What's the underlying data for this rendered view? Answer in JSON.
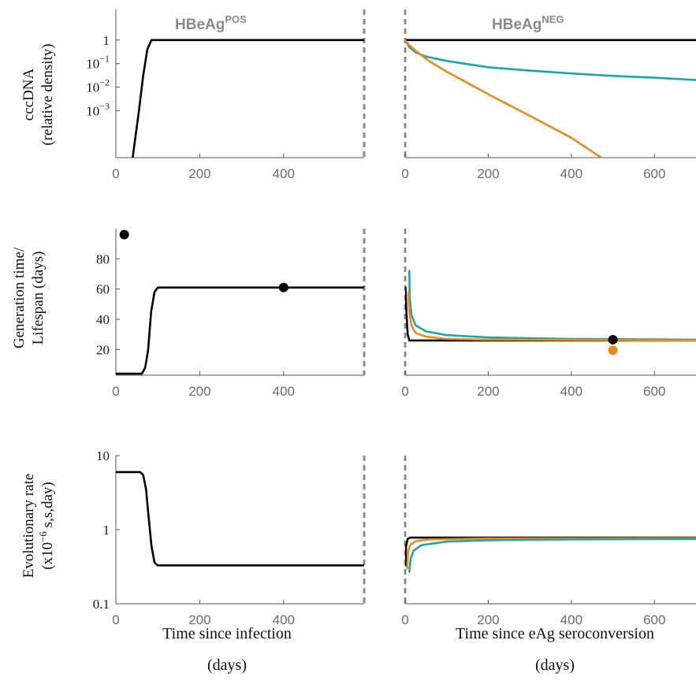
{
  "colors": {
    "black": "#000000",
    "teal": "#17a9a6",
    "orange": "#f28a12",
    "dash": "#8c8c8c"
  },
  "phases": {
    "pos": "HBeAg",
    "pos_sup": "POS",
    "neg": "HBeAg",
    "neg_sup": "NEG"
  },
  "xlabels": {
    "left_1": "Time since infection",
    "left_2": "(days)",
    "right_1": "Time since eAg seroconversion",
    "right_2": "(days)"
  },
  "ylabels": {
    "p1_1": "cccDNA",
    "p1_2": "(relative density)",
    "p2_1": "Generation time/",
    "p2_2": "Lifespan (days)",
    "p3_1": "Evolutionary rate",
    "p3_2_a": "(x10",
    "p3_2_sup": "−6",
    "p3_2_b": " s,s,day)"
  },
  "chart_data": [
    {
      "type": "line",
      "panel": "cccDNA",
      "yscale": "log",
      "ylim": [
        1e-05,
        20
      ],
      "yticks": [
        {
          "v": 1,
          "b": "1"
        },
        {
          "v": 0.1,
          "b": "10",
          "e": "−1"
        },
        {
          "v": 0.01,
          "b": "10",
          "e": "−2"
        },
        {
          "v": 0.001,
          "b": "10",
          "e": "−3"
        }
      ],
      "left": {
        "xlim": [
          0,
          592
        ],
        "xticks": [
          "0",
          "200",
          "400"
        ],
        "series": [
          {
            "color": "black",
            "points": [
              [
                40,
                1e-05
              ],
              [
                55,
                0.001
              ],
              [
                65,
                0.03
              ],
              [
                75,
                0.4
              ],
              [
                85,
                1
              ],
              [
                592,
                1
              ]
            ]
          }
        ]
      },
      "right": {
        "xlim": [
          0,
          700
        ],
        "xticks": [
          "0",
          "200",
          "400",
          "600"
        ],
        "series": [
          {
            "color": "black",
            "points": [
              [
                0,
                1
              ],
              [
                700,
                1
              ]
            ]
          },
          {
            "color": "teal",
            "points": [
              [
                0,
                1
              ],
              [
                10,
                0.5
              ],
              [
                25,
                0.3
              ],
              [
                50,
                0.2
              ],
              [
                100,
                0.13
              ],
              [
                200,
                0.07
              ],
              [
                300,
                0.05
              ],
              [
                400,
                0.038
              ],
              [
                500,
                0.03
              ],
              [
                600,
                0.025
              ],
              [
                700,
                0.02
              ]
            ]
          },
          {
            "color": "orange",
            "points": [
              [
                0,
                1
              ],
              [
                10,
                0.6
              ],
              [
                30,
                0.3
              ],
              [
                60,
                0.12
              ],
              [
                100,
                0.045
              ],
              [
                150,
                0.015
              ],
              [
                200,
                0.005
              ],
              [
                300,
                0.0006
              ],
              [
                400,
                7e-05
              ],
              [
                472,
                1e-05
              ]
            ]
          }
        ]
      }
    },
    {
      "type": "line",
      "panel": "Generation time/Lifespan",
      "yscale": "linear",
      "ylim": [
        3,
        100
      ],
      "yticks": [
        {
          "v": 80,
          "b": "80"
        },
        {
          "v": 60,
          "b": "60"
        },
        {
          "v": 40,
          "b": "40"
        },
        {
          "v": 20,
          "b": "20"
        }
      ],
      "left": {
        "xlim": [
          0,
          592
        ],
        "xticks": [
          "0",
          "200",
          "400"
        ],
        "series": [
          {
            "color": "black",
            "points": [
              [
                0,
                4
              ],
              [
                62,
                4
              ],
              [
                70,
                8
              ],
              [
                77,
                20
              ],
              [
                84,
                45
              ],
              [
                92,
                58
              ],
              [
                100,
                61
              ],
              [
                592,
                61
              ]
            ]
          }
        ],
        "markers": [
          {
            "color": "black",
            "x": 20,
            "y": 96
          },
          {
            "color": "black",
            "x": 400,
            "y": 61
          }
        ]
      },
      "right": {
        "xlim": [
          0,
          700
        ],
        "xticks": [
          "0",
          "200",
          "400",
          "600"
        ],
        "series": [
          {
            "color": "black",
            "points": [
              [
                1,
                61
              ],
              [
                3,
                45
              ],
              [
                6,
                30
              ],
              [
                10,
                26
              ],
              [
                700,
                26
              ]
            ]
          },
          {
            "color": "teal",
            "points": [
              [
                10,
                72
              ],
              [
                11,
                55
              ],
              [
                15,
                43
              ],
              [
                25,
                36
              ],
              [
                50,
                32
              ],
              [
                100,
                29.5
              ],
              [
                200,
                28
              ],
              [
                400,
                27
              ],
              [
                700,
                26.5
              ]
            ]
          },
          {
            "color": "orange",
            "points": [
              [
                8,
                58
              ],
              [
                10,
                45
              ],
              [
                15,
                36
              ],
              [
                25,
                31
              ],
              [
                50,
                28.5
              ],
              [
                100,
                27
              ],
              [
                200,
                26.5
              ],
              [
                700,
                26
              ]
            ]
          }
        ],
        "markers": [
          {
            "color": "black",
            "x": 500,
            "y": 26.5
          },
          {
            "color": "orange",
            "x": 500,
            "y": 19.5
          }
        ]
      }
    },
    {
      "type": "line",
      "panel": "Evolutionary rate",
      "yscale": "log",
      "ylim": [
        0.1,
        10
      ],
      "yticks": [
        {
          "v": 10,
          "b": "10"
        },
        {
          "v": 1,
          "b": "1"
        },
        {
          "v": 0.1,
          "b": "0.1"
        }
      ],
      "left": {
        "xlim": [
          0,
          592
        ],
        "xticks": [
          "0",
          "200",
          "400"
        ],
        "series": [
          {
            "color": "black",
            "points": [
              [
                0,
                6
              ],
              [
                58,
                6
              ],
              [
                65,
                5.5
              ],
              [
                72,
                3.5
              ],
              [
                78,
                1.5
              ],
              [
                85,
                0.6
              ],
              [
                92,
                0.36
              ],
              [
                100,
                0.33
              ],
              [
                592,
                0.33
              ]
            ]
          }
        ]
      },
      "right": {
        "xlim": [
          0,
          700
        ],
        "xticks": [
          "0",
          "200",
          "400",
          "600"
        ],
        "series": [
          {
            "color": "black",
            "points": [
              [
                1,
                0.33
              ],
              [
                2,
                0.6
              ],
              [
                6,
                0.75
              ],
              [
                12,
                0.78
              ],
              [
                700,
                0.78
              ]
            ]
          },
          {
            "color": "orange",
            "points": [
              [
                5,
                0.3
              ],
              [
                7,
                0.5
              ],
              [
                12,
                0.62
              ],
              [
                25,
                0.7
              ],
              [
                60,
                0.74
              ],
              [
                200,
                0.76
              ],
              [
                700,
                0.77
              ]
            ]
          },
          {
            "color": "teal",
            "points": [
              [
                10,
                0.27
              ],
              [
                13,
                0.4
              ],
              [
                20,
                0.52
              ],
              [
                40,
                0.62
              ],
              [
                100,
                0.69
              ],
              [
                200,
                0.72
              ],
              [
                400,
                0.74
              ],
              [
                700,
                0.75
              ]
            ]
          }
        ]
      }
    }
  ]
}
